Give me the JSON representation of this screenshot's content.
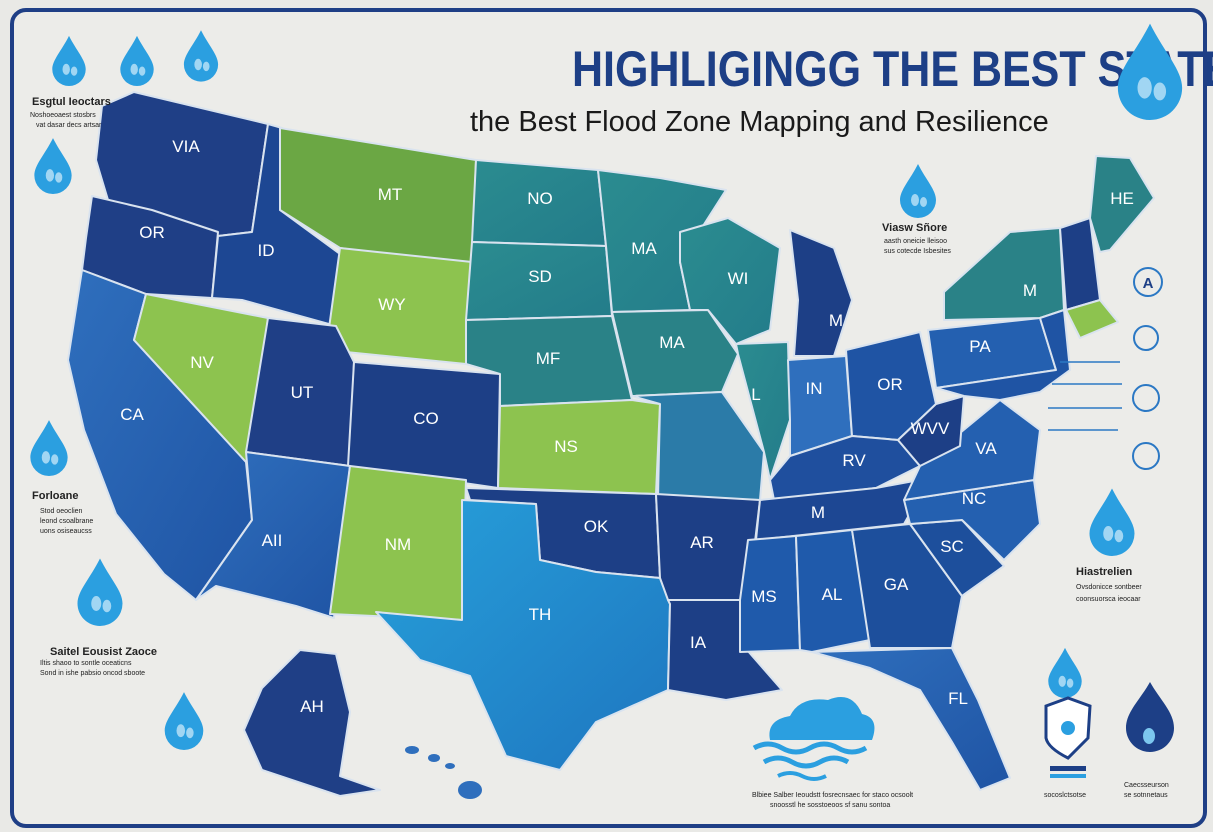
{
  "title": "HIGHLIGINGG THE BEST STATE",
  "subtitle": "the Best Flood Zone Mapping and Resilience",
  "colors": {
    "frame": "#1f3f86",
    "navy": "#1d3f86",
    "blue": "#2f6fbd",
    "teal": "#2e8b8e",
    "green": "#8dc34f",
    "drop": "#2b9fe0"
  },
  "states": {
    "WA": "VIA",
    "OR": "OR",
    "ID": "ID",
    "MT": "MT",
    "WY": "WY",
    "NV": "NV",
    "CA": "CA",
    "UT": "UT",
    "CO": "CO",
    "AZ": "AII",
    "NM": "NM",
    "ND": "NO",
    "SD": "SD",
    "NE": "MF",
    "KS": "NS",
    "OK": "OK",
    "TX": "TH",
    "MN": "MA",
    "IA": "MA",
    "MO": "",
    "AR": "AR",
    "LA": "IA",
    "WI": "WI",
    "IL": "L",
    "MI": "M",
    "IN": "IN",
    "OH": "OR",
    "KY": "RV",
    "TN": "M",
    "MS": "MS",
    "AL": "AL",
    "GA": "GA",
    "FL": "FL",
    "SC": "SC",
    "NC": "NC",
    "VA": "VA",
    "WV": "WVV",
    "PA": "PA",
    "NY": "M",
    "ME": "HE",
    "AK": "AH"
  },
  "legends": {
    "top_left": {
      "heading": "Esgtul Ieoctars",
      "lines": [
        "Noshoeoaest stosbrs",
        "vat dasar decs artsar"
      ]
    },
    "mid_left": {
      "heading": "Forloane",
      "lines": [
        "Stod oeoclien",
        "leond csoalbrane",
        "uons osiseaucss"
      ]
    },
    "bottom_left": {
      "heading": "Saitel Eousist Zaoce",
      "lines": [
        "Iltis shaoo to sontle oceaticns",
        "Sond in ishe pabsio oncod sboote"
      ]
    },
    "right_upper": {
      "heading": "Viasw Sñore",
      "lines": [
        "aasth oneicie lleisoo",
        "sus cotecde Isbesites"
      ]
    },
    "right_lower": {
      "heading": "Hiastrelien",
      "lines": [
        "Ovsdonicce sontbeer",
        "coonsuorsca ieocaar"
      ]
    },
    "bottom_center": {
      "heading": "",
      "lines": [
        "Blbiee Salber Ieoudstt fosrecnsaec for staco ocsoolt",
        "snoosstl he sosstoeoos sf sanu sontoa"
      ]
    },
    "bottom_right_a": {
      "heading": "",
      "lines": [
        "socoslctsotse"
      ]
    },
    "bottom_right_b": {
      "heading": "",
      "lines": [
        "Caecsseurson",
        "se sotnnetaus"
      ]
    }
  },
  "icons": [
    "water-drop-icon",
    "flood-cloud-icon",
    "shield-icon",
    "info-a-icon",
    "arrow-icon"
  ]
}
